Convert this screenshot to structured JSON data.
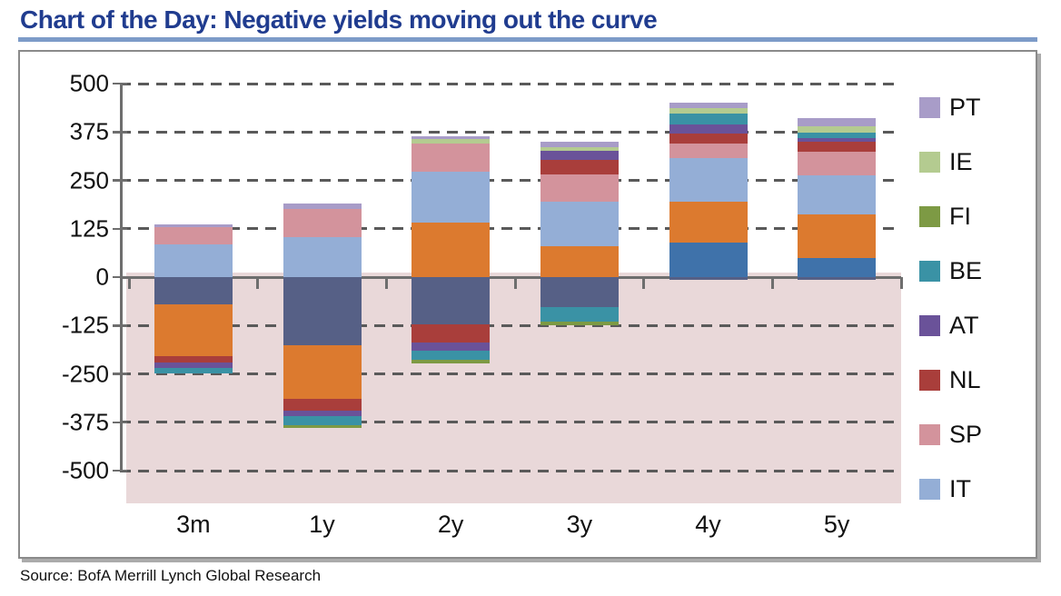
{
  "page": {
    "title": "Chart of the Day: Negative yields moving out the curve",
    "source": "Source: BofA Merrill Lynch Global Research"
  },
  "colors": {
    "title_blue": "#203c8f",
    "title_underline": "#7d9bc8",
    "box_border": "#8a8a8a",
    "grid_gray": "#5a5a5a",
    "zero_axis_gray": "#6e6e6e",
    "negative_region_pink": "#e9d8d9"
  },
  "chart_data": {
    "type": "bar",
    "stacked": true,
    "title": "Chart of the Day: Negative yields moving out the curve",
    "xlabel": "",
    "ylabel": "",
    "categories": [
      "3m",
      "1y",
      "2y",
      "3y",
      "4y",
      "5y"
    ],
    "y_axis": {
      "ticks": [
        500,
        375,
        250,
        125,
        0,
        -125,
        -250,
        -375,
        -500
      ],
      "range": [
        -500,
        500
      ],
      "grid": "dashed horizontal, solid line at zero"
    },
    "negative_region_shading": {
      "color": "#e9d8d9",
      "from_value": 12,
      "note": "pink band covering the sub-zero area of the plot"
    },
    "legend": {
      "position": "right",
      "entries_top_to_bottom": [
        "PT",
        "IE",
        "FI",
        "BE",
        "AT",
        "NL",
        "SP",
        "IT"
      ]
    },
    "series": [
      {
        "name": "unlabeled-steel-blue",
        "in_visible_legend": false,
        "color": "#3f72aa",
        "values": [
          0,
          0,
          0,
          0,
          90,
          50
        ]
      },
      {
        "name": "unlabeled-dark-slate-blue",
        "in_visible_legend": false,
        "color": "#566086",
        "values": [
          -70,
          -176,
          -122,
          -78,
          -8,
          -6
        ]
      },
      {
        "name": "unlabeled-orange",
        "in_visible_legend": false,
        "color": "#dc7a2f",
        "values": [
          -135,
          -138,
          142,
          80,
          105,
          111
        ]
      },
      {
        "name": "IT",
        "in_visible_legend": true,
        "color": "#94aed6",
        "values": [
          84,
          103,
          130,
          115,
          113,
          103
        ]
      },
      {
        "name": "SP",
        "in_visible_legend": true,
        "color": "#d3939c",
        "values": [
          44,
          74,
          73,
          70,
          36,
          61
        ]
      },
      {
        "name": "NL",
        "in_visible_legend": true,
        "color": "#a93e3b",
        "values": [
          -15,
          -31,
          -46,
          37,
          28,
          25
        ]
      },
      {
        "name": "AT",
        "in_visible_legend": true,
        "color": "#6a5299",
        "values": [
          -14,
          -15,
          -23,
          24,
          23,
          10
        ]
      },
      {
        "name": "BE",
        "in_visible_legend": true,
        "color": "#3a92a5",
        "values": [
          -14,
          -23,
          -23,
          -38,
          27,
          13
        ]
      },
      {
        "name": "FI",
        "in_visible_legend": true,
        "color": "#7d9a44",
        "values": [
          0,
          -7,
          -8,
          -9,
          0,
          0
        ]
      },
      {
        "name": "IE",
        "in_visible_legend": true,
        "color": "#b4cb90",
        "values": [
          0,
          0,
          11,
          9,
          15,
          17
        ]
      },
      {
        "name": "PT",
        "in_visible_legend": true,
        "color": "#a89cc8",
        "values": [
          9,
          12,
          9,
          15,
          13,
          21
        ]
      }
    ]
  }
}
